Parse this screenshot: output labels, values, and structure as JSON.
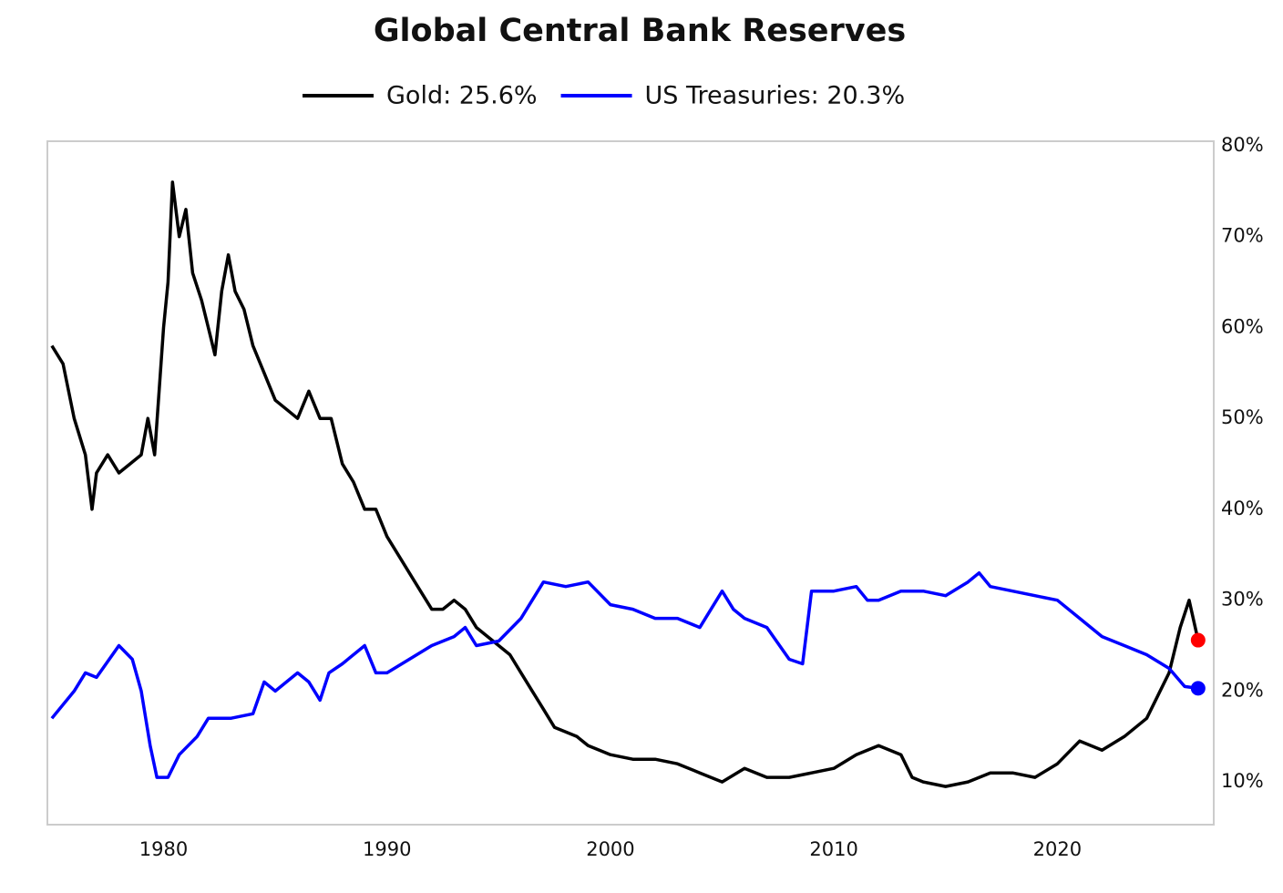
{
  "chart_data": {
    "type": "line",
    "title": "Global Central Bank Reserves",
    "series": [
      {
        "name": "Gold: 25.6%",
        "color": "#000000",
        "marker_color": "#ff0000",
        "x": [
          1975,
          1975.5,
          1976,
          1976.5,
          1976.8,
          1977,
          1977.5,
          1978,
          1978.5,
          1979,
          1979.3,
          1979.6,
          1980,
          1980.2,
          1980.4,
          1980.7,
          1981,
          1981.3,
          1981.7,
          1982,
          1982.3,
          1982.6,
          1982.9,
          1983.2,
          1983.6,
          1984,
          1984.5,
          1985,
          1985.5,
          1986,
          1986.5,
          1987,
          1987.5,
          1988,
          1988.5,
          1989,
          1989.5,
          1990,
          1990.5,
          1991,
          1991.5,
          1992,
          1992.5,
          1993,
          1993.5,
          1994,
          1994.5,
          1995,
          1995.5,
          1996,
          1996.5,
          1997,
          1997.5,
          1998,
          1998.5,
          1999,
          1999.5,
          2000,
          2001,
          2002,
          2003,
          2004,
          2005,
          2006,
          2007,
          2008,
          2009,
          2010,
          2011,
          2012,
          2013,
          2013.5,
          2014,
          2015,
          2016,
          2017,
          2018,
          2019,
          2020,
          2021,
          2022,
          2023,
          2024,
          2025,
          2025.5,
          2025.9,
          2026.3
        ],
        "values": [
          58,
          56,
          50,
          46,
          40,
          44,
          46,
          44,
          45,
          46,
          50,
          46,
          60,
          65,
          76,
          70,
          73,
          66,
          63,
          60,
          57,
          64,
          68,
          64,
          62,
          58,
          55,
          52,
          51,
          50,
          53,
          50,
          50,
          45,
          43,
          40,
          40,
          37,
          35,
          33,
          31,
          29,
          29,
          30,
          29,
          27,
          26,
          25,
          24,
          22,
          20,
          18,
          16,
          15.5,
          15,
          14,
          13.5,
          13,
          12.5,
          12.5,
          12,
          11,
          10,
          11.5,
          10.5,
          10.5,
          11,
          11.5,
          13,
          14,
          13,
          10.5,
          10,
          9.5,
          10,
          11,
          11,
          10.5,
          12,
          14.5,
          13.5,
          15,
          17,
          22,
          27,
          30,
          25.6
        ]
      },
      {
        "name": "US Treasuries: 20.3%",
        "color": "#0000ff",
        "marker_color": "#0000ff",
        "x": [
          1975,
          1976,
          1976.5,
          1977,
          1978,
          1978.6,
          1979,
          1979.4,
          1979.7,
          1980.2,
          1980.7,
          1981.5,
          1982,
          1983,
          1984,
          1984.5,
          1985,
          1986,
          1986.5,
          1987,
          1987.4,
          1988,
          1989,
          1989.5,
          1990,
          1991,
          1992,
          1993,
          1993.5,
          1994,
          1995,
          1996,
          1997,
          1998,
          1999,
          2000,
          2001,
          2002,
          2003,
          2004,
          2005,
          2005.5,
          2006,
          2007,
          2008,
          2008.6,
          2009,
          2010,
          2011,
          2011.5,
          2012,
          2013,
          2014,
          2015,
          2016,
          2016.5,
          2017,
          2018,
          2019,
          2020,
          2021,
          2022,
          2023,
          2024,
          2025,
          2025.7,
          2026.3
        ],
        "values": [
          17,
          20,
          22,
          21.5,
          25,
          23.5,
          20,
          14,
          10.5,
          10.5,
          13,
          15,
          17,
          17,
          17.5,
          21,
          20,
          22,
          21,
          19,
          22,
          23,
          25,
          22,
          22,
          23.5,
          25,
          26,
          27,
          25,
          25.5,
          28,
          32,
          31.5,
          32,
          29.5,
          29,
          28,
          28,
          27,
          31,
          29,
          28,
          27,
          23.5,
          23,
          31,
          31,
          31.5,
          30,
          30,
          31,
          31,
          30.5,
          32,
          33,
          31.5,
          31,
          30.5,
          30,
          28,
          26,
          25,
          24,
          22.5,
          20.5,
          20.3
        ]
      }
    ],
    "xlim": [
      1974.8,
      2027
    ],
    "xticks": [
      1980,
      1990,
      2000,
      2010,
      2020
    ],
    "ylim": [
      5.3,
      80.5
    ],
    "yticks": [
      {
        "value": 10,
        "label": "10%"
      },
      {
        "value": 20,
        "label": "20%"
      },
      {
        "value": 30,
        "label": "30%"
      },
      {
        "value": 40,
        "label": "40%"
      },
      {
        "value": 50,
        "label": "50%"
      },
      {
        "value": 60,
        "label": "60%"
      },
      {
        "value": 70,
        "label": "70%"
      },
      {
        "value": 80,
        "label": "80%"
      }
    ],
    "grid": false
  }
}
